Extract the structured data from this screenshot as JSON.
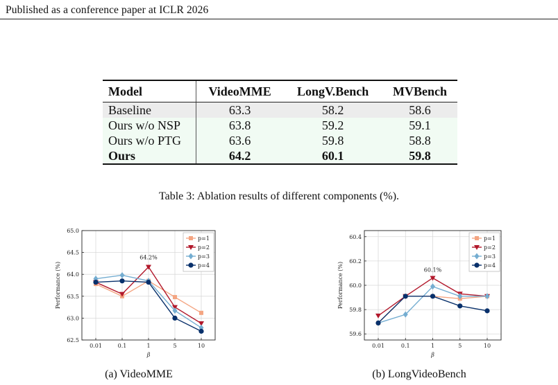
{
  "header": {
    "text": "Published as a conference paper at ICLR 2026"
  },
  "table": {
    "columns": [
      "Model",
      "VideoMME",
      "LongV.Bench",
      "MVBench"
    ],
    "rows": [
      {
        "model": "Baseline",
        "values": [
          "63.3",
          "58.2",
          "58.6"
        ]
      },
      {
        "model": "Ours w/o NSP",
        "values": [
          "63.8",
          "59.2",
          "59.1"
        ]
      },
      {
        "model": "Ours w/o PTG",
        "values": [
          "63.6",
          "59.8",
          "58.8"
        ]
      },
      {
        "model": "Ours",
        "values": [
          "64.2",
          "60.1",
          "59.8"
        ]
      }
    ],
    "caption": "Table 3: Ablation results of different components (%)."
  },
  "colors": {
    "p1": "#f4a582",
    "p2": "#b2182b",
    "p3": "#74add1",
    "p4": "#08306b",
    "baseline_row": "#ececec",
    "ours_rows": "#f1fbf3"
  },
  "chart_data": [
    {
      "type": "line",
      "caption": "(a) VideoMME",
      "xlabel": "β",
      "ylabel": "Performance (%)",
      "categories": [
        "0.01",
        "0.1",
        "1",
        "5",
        "10"
      ],
      "ylim": [
        62.5,
        65.0
      ],
      "yticks": [
        "62.5",
        "63.0",
        "63.5",
        "64.0",
        "64.5",
        "65.0"
      ],
      "annotation": {
        "text": "64.2%",
        "category": "1",
        "value": 64.2
      },
      "legend_position": "top-right",
      "series": [
        {
          "name": "p=1",
          "color": "#f4a582",
          "marker": "square",
          "values": [
            63.78,
            63.5,
            63.85,
            63.48,
            63.12
          ]
        },
        {
          "name": "p=2",
          "color": "#b2182b",
          "marker": "triangle-down",
          "values": [
            63.82,
            63.55,
            64.17,
            63.25,
            62.88
          ]
        },
        {
          "name": "p=3",
          "color": "#74add1",
          "marker": "diamond",
          "values": [
            63.9,
            63.98,
            63.85,
            63.17,
            62.78
          ]
        },
        {
          "name": "p=4",
          "color": "#08306b",
          "marker": "circle",
          "values": [
            63.82,
            63.85,
            63.82,
            63.0,
            62.7
          ]
        }
      ]
    },
    {
      "type": "line",
      "caption": "(b) LongVideoBench",
      "xlabel": "β",
      "ylabel": "Performance (%)",
      "categories": [
        "0.01",
        "0.1",
        "1",
        "5",
        "10"
      ],
      "ylim": [
        59.55,
        60.45
      ],
      "yticks": [
        "59.6",
        "59.8",
        "60.0",
        "60.2",
        "60.4"
      ],
      "annotation": {
        "text": "60.1%",
        "category": "1",
        "value": 60.06
      },
      "legend_position": "top-right",
      "series": [
        {
          "name": "p=1",
          "color": "#f4a582",
          "marker": "square",
          "values": [
            59.69,
            59.91,
            59.91,
            59.89,
            59.91
          ]
        },
        {
          "name": "p=2",
          "color": "#b2182b",
          "marker": "triangle-down",
          "values": [
            59.75,
            59.91,
            60.06,
            59.93,
            59.91
          ]
        },
        {
          "name": "p=3",
          "color": "#74add1",
          "marker": "diamond",
          "values": [
            59.69,
            59.76,
            59.99,
            59.91,
            59.91
          ]
        },
        {
          "name": "p=4",
          "color": "#08306b",
          "marker": "circle",
          "values": [
            59.69,
            59.91,
            59.91,
            59.83,
            59.79
          ]
        }
      ]
    }
  ]
}
